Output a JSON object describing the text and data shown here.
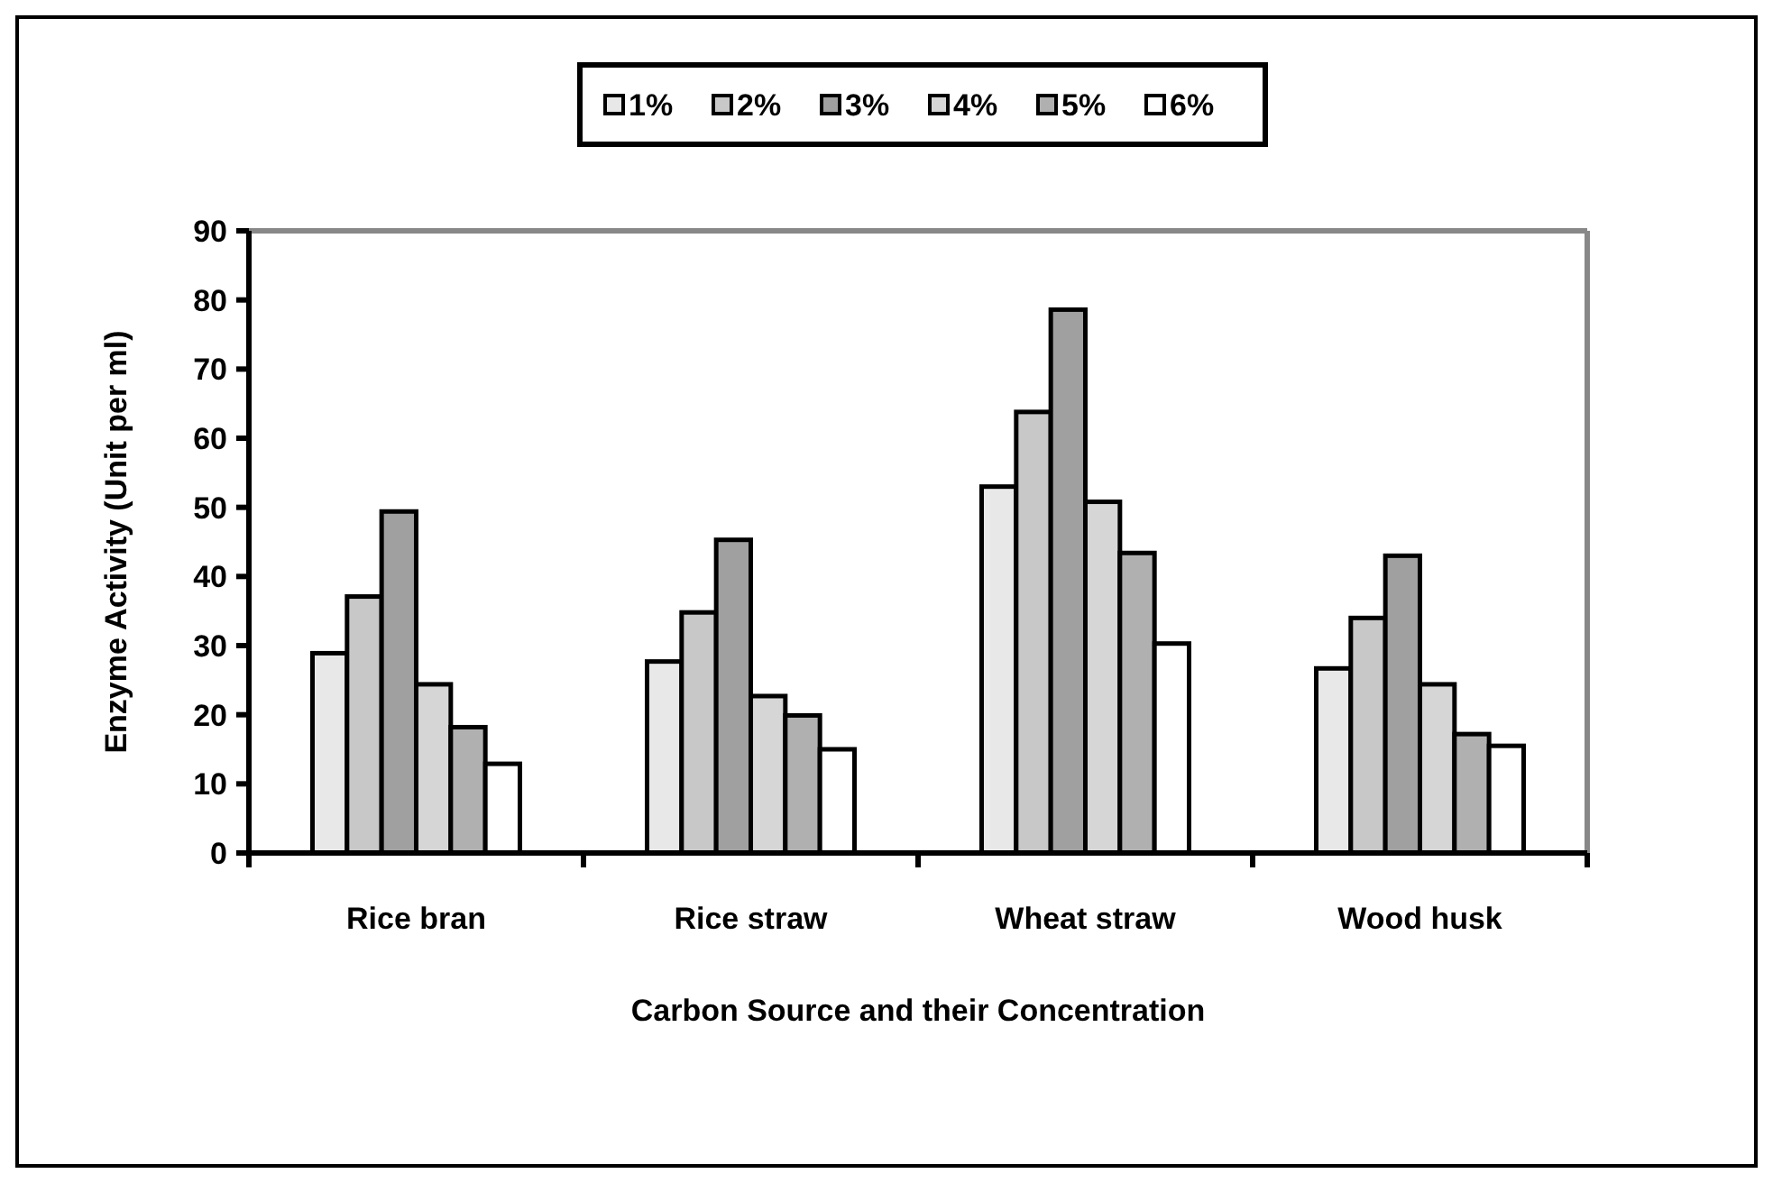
{
  "chart_data": {
    "type": "bar",
    "xlabel": "Carbon Source and their Concentration",
    "ylabel": "Enzyme Activity (Unit per ml)",
    "categories": [
      "Rice bran",
      "Rice straw",
      "Wheat straw",
      "Wood husk"
    ],
    "series": [
      {
        "name": "1%",
        "color": "#e8e8e8",
        "values": [
          28.9,
          27.7,
          53.0,
          26.7
        ]
      },
      {
        "name": "2%",
        "color": "#c8c8c8",
        "values": [
          37.1,
          34.8,
          63.8,
          34.0
        ]
      },
      {
        "name": "3%",
        "color": "#a0a0a0",
        "values": [
          49.4,
          45.3,
          78.6,
          43.0
        ]
      },
      {
        "name": "4%",
        "color": "#d6d6d6",
        "values": [
          24.4,
          22.7,
          50.8,
          24.4
        ]
      },
      {
        "name": "5%",
        "color": "#b0b0b0",
        "values": [
          18.2,
          19.9,
          43.4,
          17.2
        ]
      },
      {
        "name": "6%",
        "color": "#ffffff",
        "values": [
          12.9,
          15.0,
          30.3,
          15.5
        ]
      }
    ],
    "ylim": [
      0,
      90
    ],
    "yticks": [
      0,
      10,
      20,
      30,
      40,
      50,
      60,
      70,
      80,
      90
    ],
    "grid": false,
    "legend": "top"
  }
}
